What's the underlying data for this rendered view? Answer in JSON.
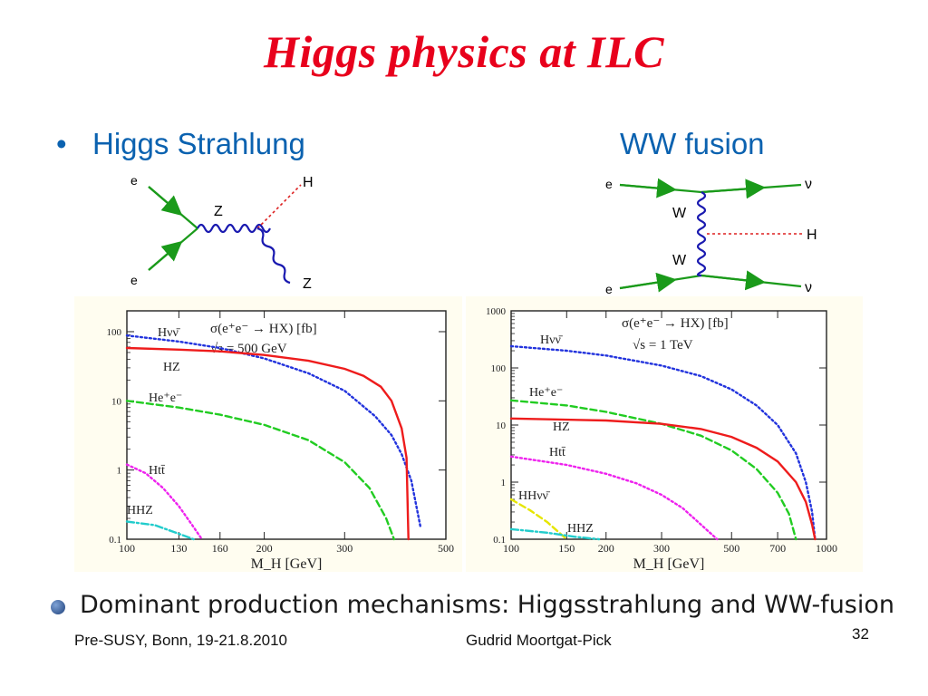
{
  "slide": {
    "title": "Higgs physics at ILC",
    "bullet_symbol": "•",
    "left_heading": "Higgs Strahlung",
    "right_heading": "WW fusion",
    "bottom_bullet": "Dominant production mechanisms: Higgsstrahlung and WW-fusion",
    "footer_left": "Pre-SUSY, Bonn, 19-21.8.2010",
    "footer_center": "Gudrid Moortgat-Pick",
    "page_number": "32"
  },
  "diagrams": {
    "strahlung": {
      "e_in_top": "e",
      "e_in_bottom": "e",
      "boson": "Z",
      "out_h": "H",
      "out_z": "Z"
    },
    "ww_fusion": {
      "e_top": "e",
      "e_bottom": "e",
      "nu_top": "ν",
      "nu_bottom": "ν",
      "w_top": "W",
      "w_bottom": "W",
      "out_h": "H"
    }
  },
  "colors": {
    "title": "#e8001c",
    "heading": "#0b62b0",
    "red": "#ee1c1c",
    "blue": "#2233dd",
    "green": "#22cc22",
    "magenta": "#ee22ee",
    "cyan": "#22cccc",
    "yellow": "#e6e600"
  },
  "chart_data": [
    {
      "type": "line",
      "title": "σ(e⁺e⁻ → HX) [fb]",
      "subtitle": "√s = 500 GeV",
      "xlabel": "M_H [GeV]",
      "ylabel": "",
      "x_scale": "log",
      "y_scale": "log",
      "xlim": [
        100,
        500
      ],
      "ylim": [
        0.1,
        200
      ],
      "xticks": [
        100,
        130,
        160,
        200,
        300,
        500
      ],
      "yticks": [
        0.1,
        1,
        10,
        100
      ],
      "ytick_labels": [
        "0.1",
        "1",
        "10",
        "100"
      ],
      "series": [
        {
          "name": "Hνν̄",
          "color": "#2233dd",
          "style": "dotted",
          "points": [
            [
              100,
              88
            ],
            [
              130,
              72
            ],
            [
              160,
              58
            ],
            [
              200,
              41
            ],
            [
              250,
              25
            ],
            [
              300,
              14
            ],
            [
              350,
              6
            ],
            [
              380,
              3.2
            ],
            [
              400,
              1.7
            ],
            [
              420,
              0.7
            ],
            [
              440,
              0.15
            ]
          ]
        },
        {
          "name": "HZ",
          "color": "#ee1c1c",
          "style": "solid",
          "points": [
            [
              100,
              58
            ],
            [
              130,
              55
            ],
            [
              160,
              52
            ],
            [
              200,
              46
            ],
            [
              250,
              38
            ],
            [
              300,
              29
            ],
            [
              330,
              23
            ],
            [
              360,
              16
            ],
            [
              380,
              10
            ],
            [
              400,
              4
            ],
            [
              410,
              1.5
            ],
            [
              414,
              0.1
            ]
          ]
        },
        {
          "name": "He⁺e⁻",
          "color": "#22cc22",
          "style": "dashed",
          "points": [
            [
              100,
              10
            ],
            [
              130,
              8
            ],
            [
              160,
              6.3
            ],
            [
              200,
              4.5
            ],
            [
              250,
              2.7
            ],
            [
              300,
              1.3
            ],
            [
              340,
              0.55
            ],
            [
              370,
              0.2
            ],
            [
              385,
              0.1
            ]
          ]
        },
        {
          "name": "Htt̄",
          "color": "#ee22ee",
          "style": "dotted",
          "points": [
            [
              100,
              1.2
            ],
            [
              110,
              0.9
            ],
            [
              120,
              0.55
            ],
            [
              130,
              0.3
            ],
            [
              140,
              0.15
            ],
            [
              146,
              0.1
            ]
          ]
        },
        {
          "name": "HHZ",
          "color": "#22cccc",
          "style": "dashdot",
          "points": [
            [
              100,
              0.18
            ],
            [
              115,
              0.16
            ],
            [
              130,
              0.12
            ],
            [
              140,
              0.1
            ]
          ]
        }
      ]
    },
    {
      "type": "line",
      "title": "σ(e⁺e⁻ → HX) [fb]",
      "subtitle": "√s = 1 TeV",
      "xlabel": "M_H [GeV]",
      "ylabel": "",
      "x_scale": "log",
      "y_scale": "log",
      "xlim": [
        100,
        1000
      ],
      "ylim": [
        0.1,
        1000
      ],
      "xticks": [
        100,
        150,
        200,
        300,
        500,
        700,
        1000
      ],
      "yticks": [
        0.1,
        1,
        10,
        100,
        1000
      ],
      "ytick_labels": [
        "0.1",
        "1",
        "10",
        "100",
        "1000"
      ],
      "series": [
        {
          "name": "Hνν̄",
          "color": "#2233dd",
          "style": "dotted",
          "points": [
            [
              100,
              240
            ],
            [
              150,
              200
            ],
            [
              200,
              165
            ],
            [
              300,
              110
            ],
            [
              400,
              72
            ],
            [
              500,
              42
            ],
            [
              600,
              22
            ],
            [
              700,
              10
            ],
            [
              800,
              3.2
            ],
            [
              860,
              1.0
            ],
            [
              900,
              0.3
            ],
            [
              920,
              0.1
            ]
          ]
        },
        {
          "name": "He⁺e⁻",
          "color": "#22cc22",
          "style": "dashed",
          "points": [
            [
              100,
              27
            ],
            [
              150,
              22
            ],
            [
              200,
              17
            ],
            [
              300,
              10.5
            ],
            [
              400,
              6.5
            ],
            [
              500,
              3.6
            ],
            [
              600,
              1.7
            ],
            [
              700,
              0.65
            ],
            [
              760,
              0.28
            ],
            [
              800,
              0.1
            ]
          ]
        },
        {
          "name": "HZ",
          "color": "#ee1c1c",
          "style": "solid",
          "points": [
            [
              100,
              13
            ],
            [
              200,
              12
            ],
            [
              300,
              10.5
            ],
            [
              400,
              8.5
            ],
            [
              500,
              6.2
            ],
            [
              600,
              4.0
            ],
            [
              700,
              2.3
            ],
            [
              800,
              1.0
            ],
            [
              860,
              0.45
            ],
            [
              900,
              0.18
            ],
            [
              920,
              0.1
            ]
          ]
        },
        {
          "name": "Htt̄",
          "color": "#ee22ee",
          "style": "dotted",
          "points": [
            [
              100,
              2.8
            ],
            [
              150,
              2.0
            ],
            [
              200,
              1.4
            ],
            [
              250,
              0.95
            ],
            [
              300,
              0.6
            ],
            [
              350,
              0.35
            ],
            [
              400,
              0.18
            ],
            [
              450,
              0.1
            ]
          ]
        },
        {
          "name": "HHνν̄",
          "color": "#e6e600",
          "style": "dashed",
          "points": [
            [
              100,
              0.5
            ],
            [
              115,
              0.32
            ],
            [
              130,
              0.2
            ],
            [
              150,
              0.1
            ]
          ]
        },
        {
          "name": "HHZ",
          "color": "#22cccc",
          "style": "dashdot",
          "points": [
            [
              100,
              0.15
            ],
            [
              130,
              0.13
            ],
            [
              160,
              0.11
            ],
            [
              190,
              0.1
            ]
          ]
        }
      ]
    }
  ]
}
